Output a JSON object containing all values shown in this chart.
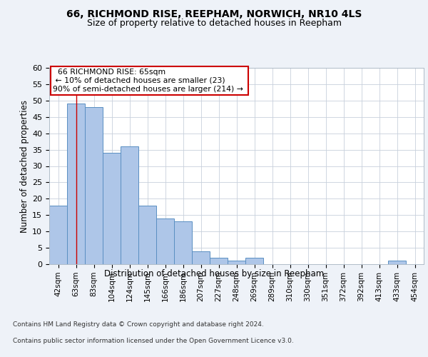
{
  "title1": "66, RICHMOND RISE, REEPHAM, NORWICH, NR10 4LS",
  "title2": "Size of property relative to detached houses in Reepham",
  "xlabel": "Distribution of detached houses by size in Reepham",
  "ylabel": "Number of detached properties",
  "categories": [
    "42sqm",
    "63sqm",
    "83sqm",
    "104sqm",
    "124sqm",
    "145sqm",
    "166sqm",
    "186sqm",
    "207sqm",
    "227sqm",
    "248sqm",
    "269sqm",
    "289sqm",
    "310sqm",
    "330sqm",
    "351sqm",
    "372sqm",
    "392sqm",
    "413sqm",
    "433sqm",
    "454sqm"
  ],
  "values": [
    18,
    49,
    48,
    34,
    36,
    18,
    14,
    13,
    4,
    2,
    1,
    2,
    0,
    0,
    0,
    0,
    0,
    0,
    0,
    1,
    0
  ],
  "bar_color": "#aec6e8",
  "bar_edge_color": "#5a8fc2",
  "vline_x": 1,
  "vline_color": "#cc0000",
  "annotation_title": "66 RICHMOND RISE: 65sqm",
  "annotation_line1": "← 10% of detached houses are smaller (23)",
  "annotation_line2": "90% of semi-detached houses are larger (214) →",
  "annotation_box_color": "#ffffff",
  "annotation_box_edge": "#cc0000",
  "ylim": [
    0,
    60
  ],
  "yticks": [
    0,
    5,
    10,
    15,
    20,
    25,
    30,
    35,
    40,
    45,
    50,
    55,
    60
  ],
  "footer1": "Contains HM Land Registry data © Crown copyright and database right 2024.",
  "footer2": "Contains public sector information licensed under the Open Government Licence v3.0.",
  "bg_color": "#eef2f8",
  "plot_bg_color": "#ffffff"
}
